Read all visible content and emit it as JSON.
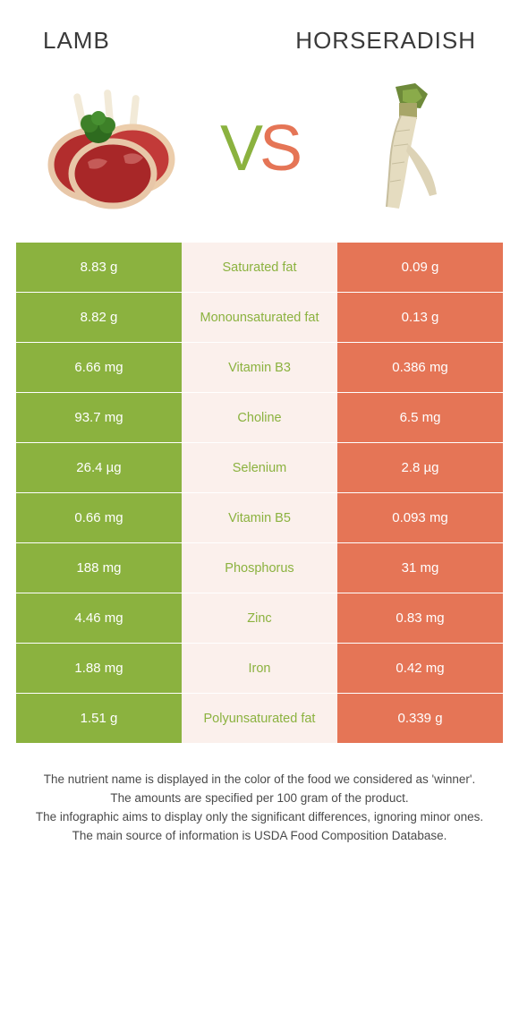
{
  "colors": {
    "left_food": "#8bb23f",
    "right_food": "#e57556",
    "mid_bg": "#fbf0ec",
    "text_dark": "#3a3a3a"
  },
  "header": {
    "left_title": "LAMB",
    "right_title": "HORSERADISH",
    "vs_v": "V",
    "vs_s": "S"
  },
  "rows": [
    {
      "left": "8.83 g",
      "label": "Saturated fat",
      "right": "0.09 g",
      "winner": "left"
    },
    {
      "left": "8.82 g",
      "label": "Monounsaturated fat",
      "right": "0.13 g",
      "winner": "left"
    },
    {
      "left": "6.66 mg",
      "label": "Vitamin B3",
      "right": "0.386 mg",
      "winner": "left"
    },
    {
      "left": "93.7 mg",
      "label": "Choline",
      "right": "6.5 mg",
      "winner": "left"
    },
    {
      "left": "26.4 µg",
      "label": "Selenium",
      "right": "2.8 µg",
      "winner": "left"
    },
    {
      "left": "0.66 mg",
      "label": "Vitamin B5",
      "right": "0.093 mg",
      "winner": "left"
    },
    {
      "left": "188 mg",
      "label": "Phosphorus",
      "right": "31 mg",
      "winner": "left"
    },
    {
      "left": "4.46 mg",
      "label": "Zinc",
      "right": "0.83 mg",
      "winner": "left"
    },
    {
      "left": "1.88 mg",
      "label": "Iron",
      "right": "0.42 mg",
      "winner": "left"
    },
    {
      "left": "1.51 g",
      "label": "Polyunsaturated fat",
      "right": "0.339 g",
      "winner": "left"
    }
  ],
  "footnote": {
    "line1": "The nutrient name is displayed in the color of the food we considered as 'winner'.",
    "line2": "The amounts are specified per 100 gram of the product.",
    "line3": "The infographic aims to display only the significant differences, ignoring minor ones.",
    "line4": "The main source of information is USDA Food Composition Database."
  }
}
